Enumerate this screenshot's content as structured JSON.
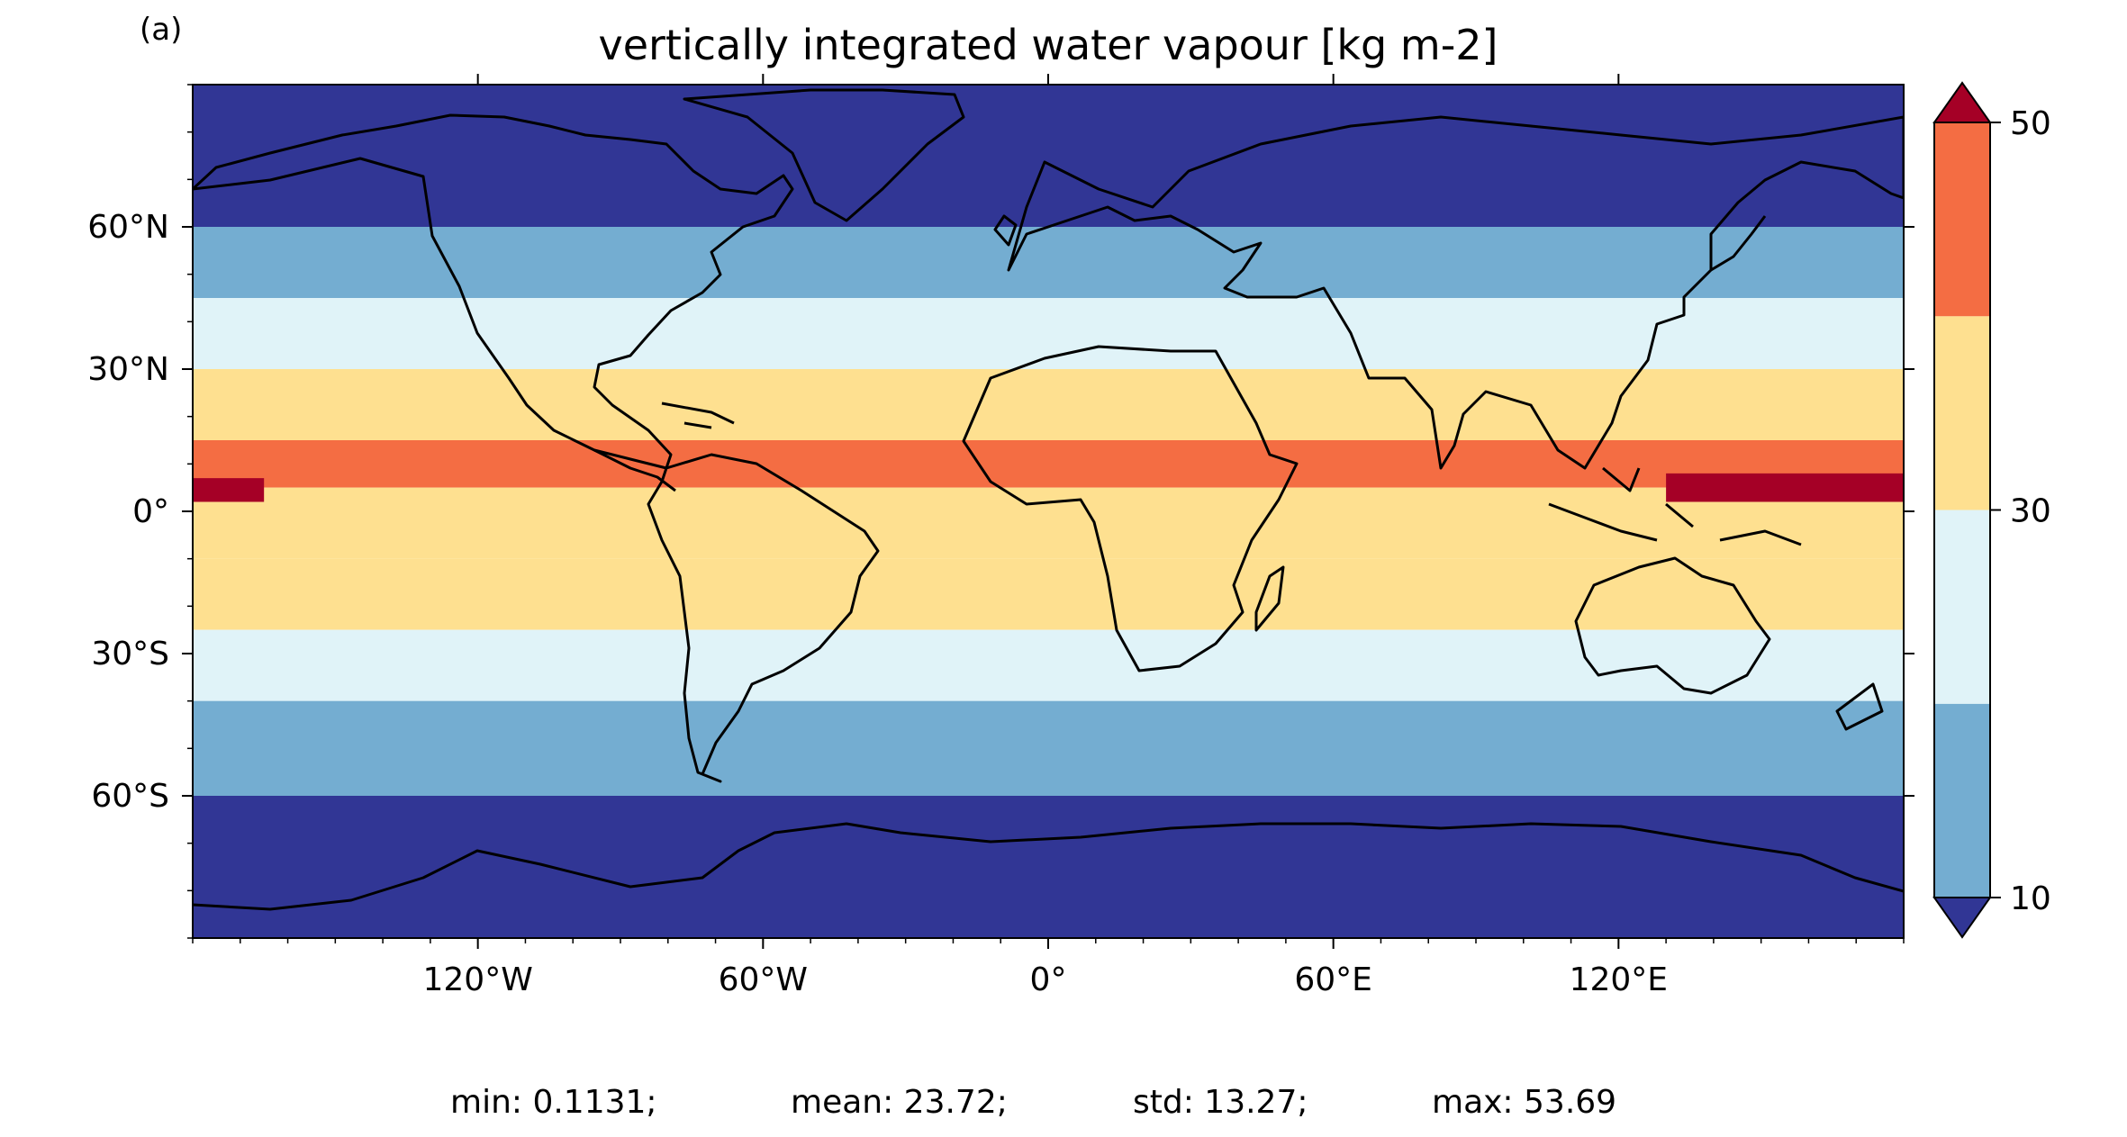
{
  "panel_label": "(a)",
  "title": "vertically integrated water vapour [kg m-2]",
  "x_ticks": [
    {
      "lon": -120,
      "label": "120°W"
    },
    {
      "lon": -60,
      "label": "60°W"
    },
    {
      "lon": 0,
      "label": "0°"
    },
    {
      "lon": 60,
      "label": "60°E"
    },
    {
      "lon": 120,
      "label": "120°E"
    }
  ],
  "y_ticks": [
    {
      "lat": 60,
      "label": "60°N"
    },
    {
      "lat": 30,
      "label": "30°N"
    },
    {
      "lat": 0,
      "label": "0°"
    },
    {
      "lat": -30,
      "label": "30°S"
    },
    {
      "lat": -60,
      "label": "60°S"
    }
  ],
  "colorbar": {
    "levels": [
      10,
      20,
      30,
      40,
      50
    ],
    "tick_labels": [
      "50",
      "30",
      "10"
    ],
    "tick_values": [
      50,
      30,
      10
    ],
    "extend": "both",
    "colors": {
      "under": "#313695",
      "b10_20": "#74add1",
      "b20_30": "#e0f3f8",
      "b30_40": "#fee090",
      "b40_50": "#f46d43",
      "over": "#a50026"
    }
  },
  "stats": {
    "min": "min: 0.1131;",
    "mean": "mean: 23.72;",
    "std": "std: 13.27;",
    "max": "max: 53.69"
  },
  "chart_data": {
    "type": "heatmap",
    "title": "vertically integrated water vapour [kg m-2]",
    "xlim": [
      -180,
      180
    ],
    "ylim": [
      -90,
      90
    ],
    "color_levels": [
      10,
      20,
      30,
      40,
      50
    ],
    "zonal_band_categories": [
      {
        "lat_range": [
          60,
          90
        ],
        "class": "<10"
      },
      {
        "lat_range": [
          45,
          60
        ],
        "class": "10-20"
      },
      {
        "lat_range": [
          30,
          45
        ],
        "class": "20-30"
      },
      {
        "lat_range": [
          15,
          30
        ],
        "class": "30-40"
      },
      {
        "lat_range": [
          5,
          15
        ],
        "class": "40-50"
      },
      {
        "lat_range": [
          -10,
          5
        ],
        "class": "30-40"
      },
      {
        "lat_range": [
          -25,
          -10
        ],
        "class": "30-40"
      },
      {
        "lat_range": [
          -40,
          -25
        ],
        "class": "20-30"
      },
      {
        "lat_range": [
          -60,
          -40
        ],
        "class": "10-20"
      },
      {
        "lat_range": [
          -90,
          -60
        ],
        "class": "<10"
      }
    ],
    "stats": {
      "min": 0.1131,
      "mean": 23.72,
      "std": 13.27,
      "max": 53.69
    }
  }
}
